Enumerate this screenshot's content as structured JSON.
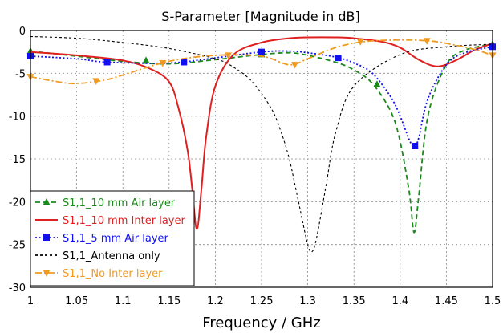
{
  "chart_data": {
    "type": "line",
    "title": "S-Parameter [Magnitude in dB]",
    "xlabel": "Frequency / GHz",
    "ylabel": "",
    "xlim": [
      1,
      1.5
    ],
    "ylim": [
      -30,
      0
    ],
    "xticks": [
      "1",
      "1.05",
      "1.1",
      "1.15",
      "1.2",
      "1.25",
      "1.3",
      "1.35",
      "1.4",
      "1.45",
      "1.5"
    ],
    "yticks": [
      "0",
      "-5",
      "-10",
      "-15",
      "-20",
      "-25",
      "-30"
    ],
    "grid": true,
    "legend_position": "bottom-left",
    "series": [
      {
        "name": "S1,1_10 mm Air layer",
        "color": "#1a8a1a",
        "line_style": "dashed",
        "marker": "triangle-up",
        "x": [
          1.0,
          1.05,
          1.1,
          1.15,
          1.2,
          1.25,
          1.28,
          1.3,
          1.33,
          1.35,
          1.37,
          1.39,
          1.4,
          1.41,
          1.415,
          1.42,
          1.43,
          1.45,
          1.47,
          1.5
        ],
        "y": [
          -2.4,
          -3.0,
          -3.6,
          -3.9,
          -3.4,
          -2.8,
          -2.6,
          -2.9,
          -3.7,
          -4.6,
          -6.2,
          -9.5,
          -13.0,
          -19.0,
          -23.6,
          -19.5,
          -10.0,
          -4.0,
          -2.3,
          -1.6
        ],
        "marker_x": [
          1.0,
          1.125,
          1.25,
          1.375,
          1.5
        ],
        "marker_y": [
          -2.4,
          -3.5,
          -2.8,
          -6.3,
          -1.6
        ]
      },
      {
        "name": "S1,1_10 mm Inter layer",
        "color": "#e02020",
        "line_style": "solid",
        "marker": "none",
        "x": [
          1.0,
          1.05,
          1.1,
          1.13,
          1.15,
          1.16,
          1.17,
          1.175,
          1.18,
          1.185,
          1.19,
          1.2,
          1.22,
          1.25,
          1.28,
          1.3,
          1.33,
          1.35,
          1.38,
          1.4,
          1.42,
          1.44,
          1.46,
          1.48,
          1.5
        ],
        "y": [
          -2.5,
          -2.9,
          -3.5,
          -4.5,
          -6.0,
          -9.0,
          -14.0,
          -18.5,
          -23.2,
          -18.5,
          -12.5,
          -6.5,
          -2.8,
          -1.4,
          -0.9,
          -0.8,
          -0.8,
          -0.9,
          -1.3,
          -2.0,
          -3.4,
          -4.2,
          -3.5,
          -2.3,
          -1.5
        ]
      },
      {
        "name": "S1,1_5 mm Air layer",
        "color": "#1010ee",
        "line_style": "dotted",
        "marker": "square",
        "x": [
          1.0,
          1.05,
          1.083,
          1.15,
          1.2,
          1.25,
          1.28,
          1.3,
          1.33,
          1.35,
          1.37,
          1.39,
          1.4,
          1.41,
          1.415,
          1.42,
          1.43,
          1.45,
          1.47,
          1.5
        ],
        "y": [
          -3.0,
          -3.3,
          -3.7,
          -3.8,
          -3.2,
          -2.5,
          -2.4,
          -2.6,
          -3.1,
          -3.8,
          -5.0,
          -7.8,
          -10.0,
          -12.8,
          -13.5,
          -12.6,
          -8.0,
          -4.0,
          -2.6,
          -1.9
        ],
        "marker_x": [
          1.0,
          1.083,
          1.166,
          1.25,
          1.333,
          1.416,
          1.5
        ],
        "marker_y": [
          -3.0,
          -3.7,
          -3.7,
          -2.5,
          -3.2,
          -13.5,
          -1.9
        ]
      },
      {
        "name": "S1,1_Antenna only",
        "color": "#000000",
        "line_style": "fine-dashed",
        "marker": "none",
        "x": [
          1.0,
          1.05,
          1.1,
          1.15,
          1.2,
          1.22,
          1.24,
          1.26,
          1.27,
          1.28,
          1.29,
          1.3,
          1.305,
          1.31,
          1.32,
          1.33,
          1.35,
          1.4,
          1.45,
          1.5
        ],
        "y": [
          -0.7,
          -0.9,
          -1.4,
          -2.1,
          -3.3,
          -4.3,
          -6.0,
          -9.0,
          -11.5,
          -15.0,
          -20.0,
          -25.0,
          -25.8,
          -24.0,
          -18.0,
          -12.0,
          -6.5,
          -2.8,
          -1.9,
          -1.6
        ]
      },
      {
        "name": "S1,1_No Inter layer",
        "color": "#f09a20",
        "line_style": "dash-dot",
        "marker": "triangle-down",
        "x": [
          1.0,
          1.03,
          1.05,
          1.08,
          1.1,
          1.15,
          1.2,
          1.25,
          1.28,
          1.3,
          1.33,
          1.36,
          1.4,
          1.43,
          1.45,
          1.48,
          1.5
        ],
        "y": [
          -5.4,
          -6.0,
          -6.2,
          -5.8,
          -5.2,
          -3.6,
          -2.9,
          -3.0,
          -4.0,
          -3.3,
          -2.0,
          -1.3,
          -1.1,
          -1.2,
          -1.5,
          -2.2,
          -2.9
        ],
        "marker_x": [
          1.0,
          1.071,
          1.143,
          1.214,
          1.286,
          1.357,
          1.429,
          1.5
        ],
        "marker_y": [
          -5.4,
          -5.9,
          -3.8,
          -2.9,
          -4.0,
          -1.3,
          -1.2,
          -2.9
        ]
      }
    ]
  }
}
